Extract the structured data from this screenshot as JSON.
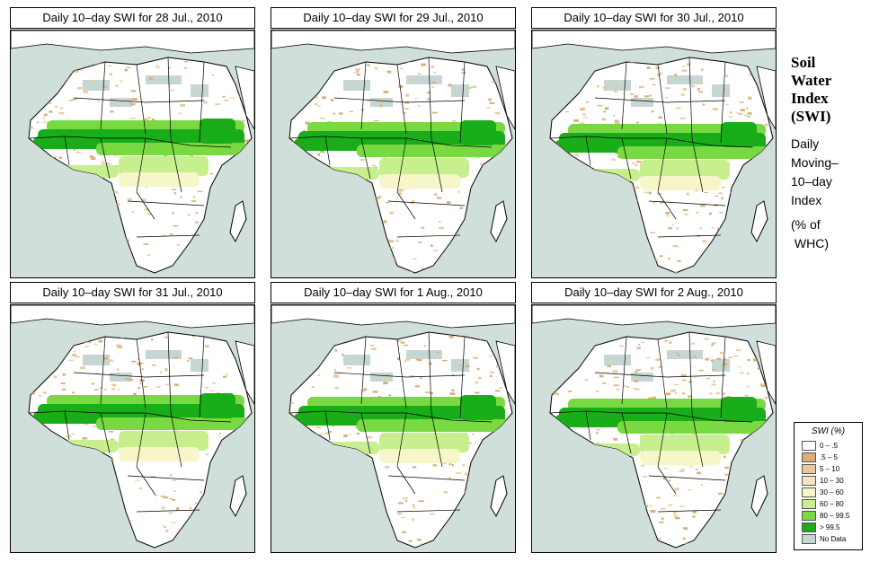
{
  "panels": [
    {
      "title": "Daily 10–day SWI for  28 Jul., 2010"
    },
    {
      "title": "Daily 10–day SWI for  29 Jul., 2010"
    },
    {
      "title": "Daily 10–day SWI for  30 Jul., 2010"
    },
    {
      "title": "Daily 10–day SWI for  31 Jul., 2010"
    },
    {
      "title": "Daily 10–day SWI for  1 Aug., 2010"
    },
    {
      "title": "Daily 10–day SWI for  2 Aug., 2010"
    }
  ],
  "side": {
    "title_lines": [
      "Soil",
      "Water",
      "Index",
      "(SWI)"
    ],
    "subtitle_lines": [
      "Daily",
      "Moving–",
      "10–day",
      "Index"
    ],
    "unit_lines": [
      "(% of",
      " WHC)"
    ]
  },
  "legend": {
    "title": "SWI (%)",
    "items": [
      {
        "label": "0 – .5",
        "color": "#ffffff"
      },
      {
        "label": ".5 – 5",
        "color": "#d9ae78"
      },
      {
        "label": "5 – 10",
        "color": "#e9c99a"
      },
      {
        "label": "10 – 30",
        "color": "#f4e4c2"
      },
      {
        "label": "30 – 60",
        "color": "#f6f6c8"
      },
      {
        "label": "60 – 80",
        "color": "#c7ef8e"
      },
      {
        "label": "80 – 99.5",
        "color": "#79d942"
      },
      {
        "label": "> 99.5",
        "color": "#19ad19"
      },
      {
        "label": "No Data",
        "color": "#c6d6d3"
      }
    ]
  },
  "colors": {
    "ocean": "#d0dfd9",
    "land": "#ffffff",
    "border": "#000000"
  }
}
